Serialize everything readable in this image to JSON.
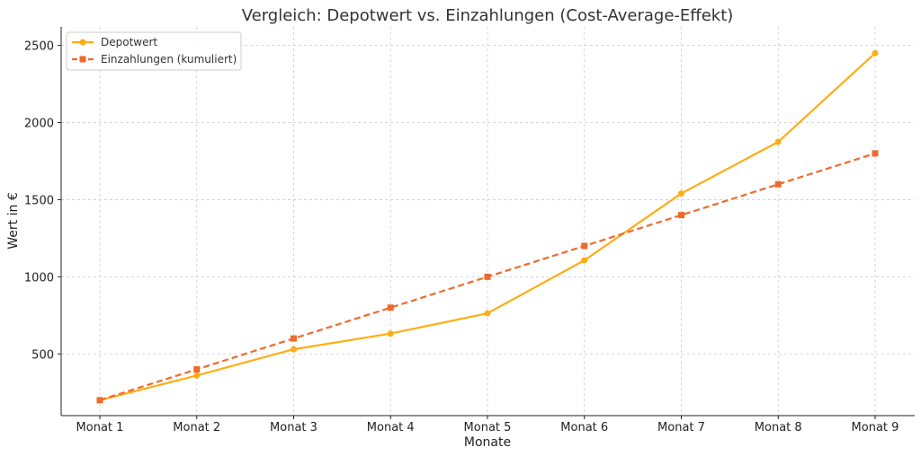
{
  "chart_data": {
    "type": "line",
    "title": "Vergleich: Depotwert vs. Einzahlungen (Cost-Average-Effekt)",
    "xlabel": "Monate",
    "ylabel": "Wert in €",
    "categories": [
      "Monat 1",
      "Monat 2",
      "Monat 3",
      "Monat 4",
      "Monat 5",
      "Monat 6",
      "Monat 7",
      "Monat 8",
      "Monat 9"
    ],
    "ylim": [
      100,
      2620
    ],
    "yticks": [
      500,
      1000,
      1500,
      2000,
      2500
    ],
    "grid": true,
    "legend_position": "top-left",
    "series": [
      {
        "name": "Depotwert",
        "values": [
          200,
          360,
          530,
          632,
          763,
          1107,
          1540,
          1875,
          2450
        ],
        "color": "#FFAD14",
        "style": "solid",
        "marker": "circle"
      },
      {
        "name": "Einzahlungen (kumuliert)",
        "values": [
          200,
          400,
          600,
          800,
          1000,
          1200,
          1400,
          1600,
          1800
        ],
        "color": "#EE6A2C",
        "style": "dashed",
        "marker": "square"
      }
    ]
  }
}
